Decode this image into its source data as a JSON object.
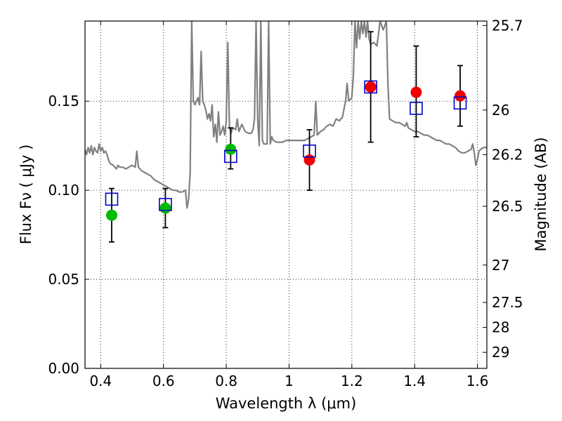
{
  "chart_data": {
    "type": "scatter",
    "xlabel": "Wavelength  λ (μm)",
    "ylabel": "Flux  Fν  ( μJy )",
    "right_ylabel": "Magnitude (AB)",
    "xlim": [
      0.35,
      1.63
    ],
    "ylim": [
      0.0,
      0.195
    ],
    "grid": true,
    "x_ticks": [
      {
        "value": 0.4,
        "label": "0.4"
      },
      {
        "value": 0.6,
        "label": "0.6"
      },
      {
        "value": 0.8,
        "label": "0.8"
      },
      {
        "value": 1.0,
        "label": "1"
      },
      {
        "value": 1.2,
        "label": "1.2"
      },
      {
        "value": 1.4,
        "label": "1.4"
      },
      {
        "value": 1.6,
        "label": "1.6"
      }
    ],
    "y_ticks": [
      {
        "value": 0.0,
        "label": "0.00"
      },
      {
        "value": 0.05,
        "label": "0.05"
      },
      {
        "value": 0.1,
        "label": "0.10"
      },
      {
        "value": 0.15,
        "label": "0.15"
      }
    ],
    "right_ticks": [
      {
        "flux": 0.1925,
        "label": "25.7"
      },
      {
        "flux": 0.145,
        "label": "26"
      },
      {
        "flux": 0.12,
        "label": "26.2"
      },
      {
        "flux": 0.091,
        "label": "26.5"
      },
      {
        "flux": 0.058,
        "label": "27"
      },
      {
        "flux": 0.037,
        "label": "27.5"
      },
      {
        "flux": 0.023,
        "label": "28"
      },
      {
        "flux": 0.009,
        "label": "29"
      }
    ],
    "series": [
      {
        "kind": "observed",
        "marker": "errorbar",
        "color": "#000000",
        "points": [
          {
            "x": 0.435,
            "y": 0.086,
            "yerr_low": 0.071,
            "yerr_high": 0.101
          },
          {
            "x": 0.606,
            "y": 0.09,
            "yerr_low": 0.079,
            "yerr_high": 0.101
          },
          {
            "x": 0.814,
            "y": 0.123,
            "yerr_low": 0.112,
            "yerr_high": 0.135
          },
          {
            "x": 1.065,
            "y": 0.117,
            "yerr_low": 0.1,
            "yerr_high": 0.134
          },
          {
            "x": 1.26,
            "y": 0.158,
            "yerr_low": 0.127,
            "yerr_high": 0.189
          },
          {
            "x": 1.405,
            "y": 0.155,
            "yerr_low": 0.13,
            "yerr_high": 0.181
          },
          {
            "x": 1.545,
            "y": 0.153,
            "yerr_low": 0.136,
            "yerr_high": 0.17
          }
        ]
      },
      {
        "kind": "observed-optical",
        "marker": "circle",
        "color": "#00bb00",
        "points": [
          {
            "x": 0.435,
            "y": 0.086
          },
          {
            "x": 0.606,
            "y": 0.09
          },
          {
            "x": 0.814,
            "y": 0.123
          }
        ]
      },
      {
        "kind": "observed-infrared",
        "marker": "circle",
        "color": "#ee0000",
        "points": [
          {
            "x": 1.065,
            "y": 0.117
          },
          {
            "x": 1.26,
            "y": 0.158
          },
          {
            "x": 1.405,
            "y": 0.155
          },
          {
            "x": 1.545,
            "y": 0.153
          }
        ]
      },
      {
        "kind": "model-photometry",
        "marker": "open-square",
        "color": "#0000cc",
        "points": [
          {
            "x": 0.435,
            "y": 0.095
          },
          {
            "x": 0.606,
            "y": 0.092
          },
          {
            "x": 0.814,
            "y": 0.119
          },
          {
            "x": 1.065,
            "y": 0.122
          },
          {
            "x": 1.26,
            "y": 0.158
          },
          {
            "x": 1.405,
            "y": 0.146
          },
          {
            "x": 1.545,
            "y": 0.149
          }
        ]
      },
      {
        "kind": "template-spectrum",
        "marker": "line",
        "color": "#808080",
        "points": [
          [
            0.35,
            0.123
          ],
          [
            0.355,
            0.12
          ],
          [
            0.36,
            0.124
          ],
          [
            0.365,
            0.121
          ],
          [
            0.37,
            0.125
          ],
          [
            0.375,
            0.12
          ],
          [
            0.38,
            0.124
          ],
          [
            0.385,
            0.122
          ],
          [
            0.39,
            0.121
          ],
          [
            0.395,
            0.126
          ],
          [
            0.4,
            0.122
          ],
          [
            0.405,
            0.124
          ],
          [
            0.41,
            0.121
          ],
          [
            0.415,
            0.122
          ],
          [
            0.42,
            0.12
          ],
          [
            0.425,
            0.117
          ],
          [
            0.43,
            0.115
          ],
          [
            0.44,
            0.114
          ],
          [
            0.45,
            0.112
          ],
          [
            0.455,
            0.114
          ],
          [
            0.46,
            0.113
          ],
          [
            0.47,
            0.113
          ],
          [
            0.48,
            0.112
          ],
          [
            0.49,
            0.113
          ],
          [
            0.5,
            0.114
          ],
          [
            0.51,
            0.113
          ],
          [
            0.515,
            0.122
          ],
          [
            0.52,
            0.113
          ],
          [
            0.53,
            0.111
          ],
          [
            0.54,
            0.11
          ],
          [
            0.55,
            0.109
          ],
          [
            0.56,
            0.108
          ],
          [
            0.57,
            0.106
          ],
          [
            0.58,
            0.105
          ],
          [
            0.59,
            0.104
          ],
          [
            0.6,
            0.103
          ],
          [
            0.61,
            0.102
          ],
          [
            0.62,
            0.101
          ],
          [
            0.63,
            0.1
          ],
          [
            0.64,
            0.1
          ],
          [
            0.65,
            0.099
          ],
          [
            0.66,
            0.099
          ],
          [
            0.67,
            0.1
          ],
          [
            0.675,
            0.09
          ],
          [
            0.68,
            0.095
          ],
          [
            0.685,
            0.11
          ],
          [
            0.69,
            0.195
          ],
          [
            0.695,
            0.15
          ],
          [
            0.7,
            0.148
          ],
          [
            0.705,
            0.15
          ],
          [
            0.71,
            0.152
          ],
          [
            0.715,
            0.148
          ],
          [
            0.72,
            0.178
          ],
          [
            0.725,
            0.15
          ],
          [
            0.73,
            0.148
          ],
          [
            0.735,
            0.145
          ],
          [
            0.74,
            0.14
          ],
          [
            0.745,
            0.143
          ],
          [
            0.75,
            0.139
          ],
          [
            0.755,
            0.148
          ],
          [
            0.76,
            0.13
          ],
          [
            0.765,
            0.137
          ],
          [
            0.77,
            0.127
          ],
          [
            0.775,
            0.144
          ],
          [
            0.78,
            0.131
          ],
          [
            0.785,
            0.133
          ],
          [
            0.79,
            0.136
          ],
          [
            0.795,
            0.131
          ],
          [
            0.8,
            0.139
          ],
          [
            0.805,
            0.183
          ],
          [
            0.81,
            0.136
          ],
          [
            0.815,
            0.132
          ],
          [
            0.82,
            0.135
          ],
          [
            0.83,
            0.134
          ],
          [
            0.835,
            0.14
          ],
          [
            0.84,
            0.133
          ],
          [
            0.85,
            0.137
          ],
          [
            0.86,
            0.133
          ],
          [
            0.87,
            0.132
          ],
          [
            0.88,
            0.132
          ],
          [
            0.885,
            0.134
          ],
          [
            0.89,
            0.14
          ],
          [
            0.895,
            0.195
          ],
          [
            0.9,
            0.14
          ],
          [
            0.905,
            0.125
          ],
          [
            0.91,
            0.195
          ],
          [
            0.915,
            0.128
          ],
          [
            0.92,
            0.126
          ],
          [
            0.93,
            0.126
          ],
          [
            0.935,
            0.195
          ],
          [
            0.94,
            0.126
          ],
          [
            0.945,
            0.13
          ],
          [
            0.95,
            0.128
          ],
          [
            0.96,
            0.127
          ],
          [
            0.97,
            0.127
          ],
          [
            0.98,
            0.127
          ],
          [
            0.99,
            0.128
          ],
          [
            1.0,
            0.128
          ],
          [
            1.01,
            0.128
          ],
          [
            1.02,
            0.128
          ],
          [
            1.03,
            0.128
          ],
          [
            1.04,
            0.128
          ],
          [
            1.05,
            0.128
          ],
          [
            1.06,
            0.129
          ],
          [
            1.07,
            0.13
          ],
          [
            1.08,
            0.131
          ],
          [
            1.085,
            0.15
          ],
          [
            1.09,
            0.131
          ],
          [
            1.1,
            0.133
          ],
          [
            1.11,
            0.134
          ],
          [
            1.12,
            0.136
          ],
          [
            1.13,
            0.137
          ],
          [
            1.14,
            0.136
          ],
          [
            1.15,
            0.14
          ],
          [
            1.16,
            0.139
          ],
          [
            1.17,
            0.141
          ],
          [
            1.18,
            0.15
          ],
          [
            1.185,
            0.16
          ],
          [
            1.19,
            0.15
          ],
          [
            1.2,
            0.152
          ],
          [
            1.205,
            0.165
          ],
          [
            1.21,
            0.195
          ],
          [
            1.215,
            0.18
          ],
          [
            1.22,
            0.195
          ],
          [
            1.225,
            0.185
          ],
          [
            1.23,
            0.195
          ],
          [
            1.235,
            0.188
          ],
          [
            1.24,
            0.195
          ],
          [
            1.245,
            0.186
          ],
          [
            1.25,
            0.195
          ],
          [
            1.255,
            0.185
          ],
          [
            1.26,
            0.182
          ],
          [
            1.27,
            0.183
          ],
          [
            1.28,
            0.181
          ],
          [
            1.29,
            0.195
          ],
          [
            1.3,
            0.19
          ],
          [
            1.31,
            0.195
          ],
          [
            1.315,
            0.16
          ],
          [
            1.32,
            0.14
          ],
          [
            1.33,
            0.139
          ],
          [
            1.34,
            0.138
          ],
          [
            1.35,
            0.138
          ],
          [
            1.36,
            0.137
          ],
          [
            1.37,
            0.136
          ],
          [
            1.375,
            0.138
          ],
          [
            1.38,
            0.135
          ],
          [
            1.39,
            0.134
          ],
          [
            1.4,
            0.133
          ],
          [
            1.41,
            0.133
          ],
          [
            1.42,
            0.132
          ],
          [
            1.43,
            0.131
          ],
          [
            1.44,
            0.131
          ],
          [
            1.45,
            0.13
          ],
          [
            1.46,
            0.129
          ],
          [
            1.47,
            0.128
          ],
          [
            1.48,
            0.128
          ],
          [
            1.49,
            0.127
          ],
          [
            1.5,
            0.126
          ],
          [
            1.51,
            0.126
          ],
          [
            1.52,
            0.125
          ],
          [
            1.53,
            0.124
          ],
          [
            1.54,
            0.122
          ],
          [
            1.55,
            0.121
          ],
          [
            1.56,
            0.121
          ],
          [
            1.57,
            0.122
          ],
          [
            1.58,
            0.123
          ],
          [
            1.585,
            0.126
          ],
          [
            1.59,
            0.121
          ],
          [
            1.595,
            0.114
          ],
          [
            1.6,
            0.117
          ],
          [
            1.605,
            0.122
          ],
          [
            1.61,
            0.123
          ],
          [
            1.62,
            0.124
          ],
          [
            1.63,
            0.124
          ]
        ]
      }
    ]
  }
}
